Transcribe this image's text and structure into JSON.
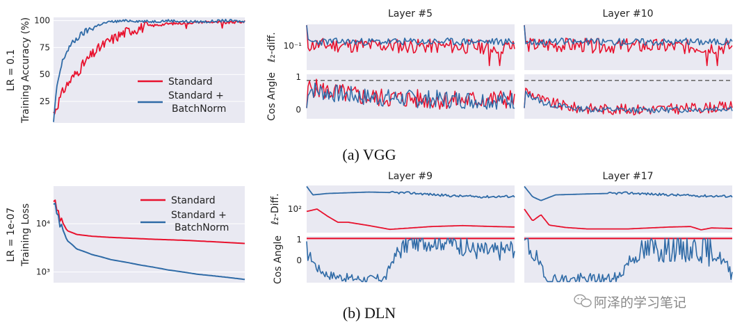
{
  "colors": {
    "standard": "#e8112d",
    "batchnorm": "#2e6aa6",
    "panel_bg": "#e9e9f2",
    "reference_line": "#555555"
  },
  "watermark": {
    "text": "阿泽的学习笔记"
  },
  "chart_data": [
    {
      "id": "vgg-accuracy",
      "type": "line",
      "ylabel": "Training Accuracy (%)",
      "row_label": "LR = 0.1",
      "yticks": [
        "25",
        "50",
        "75",
        "100"
      ],
      "ytick_values": [
        25,
        50,
        75,
        100
      ],
      "ylim": [
        5,
        103
      ],
      "legend": {
        "position": "bottom-right",
        "entries": [
          "Standard",
          "Standard +",
          "BatchNorm"
        ]
      },
      "series": [
        {
          "name": "Standard",
          "color": "#e8112d",
          "x": [
            0,
            0.03,
            0.06,
            0.1,
            0.15,
            0.2,
            0.25,
            0.3,
            0.35,
            0.4,
            0.5,
            0.6,
            0.7,
            0.8,
            0.9,
            1.0
          ],
          "y": [
            14,
            26,
            38,
            47,
            58,
            68,
            76,
            82,
            87,
            91,
            95,
            97,
            98,
            99,
            98,
            99
          ]
        },
        {
          "name": "Standard + BatchNorm",
          "color": "#2e6aa6",
          "x": [
            0,
            0.02,
            0.05,
            0.08,
            0.12,
            0.16,
            0.2,
            0.25,
            0.3,
            0.4,
            0.5,
            0.6,
            0.7,
            0.8,
            0.9,
            1.0
          ],
          "y": [
            6,
            42,
            64,
            75,
            83,
            89,
            93,
            97,
            99,
            100,
            99,
            100,
            99,
            99,
            100,
            99
          ]
        }
      ]
    },
    {
      "id": "dln-loss",
      "type": "line",
      "ylabel": "Training Loss",
      "row_label": "LR = 1e-07",
      "yscale": "log",
      "yticks": [
        "10³",
        "10⁴"
      ],
      "ytick_values": [
        1000,
        10000
      ],
      "ylim": [
        600,
        60000
      ],
      "legend": {
        "position": "top-right",
        "entries": [
          "Standard",
          "Standard +",
          "BatchNorm"
        ]
      },
      "series": [
        {
          "name": "Standard",
          "color": "#e8112d",
          "x": [
            0,
            0.03,
            0.07,
            0.12,
            0.2,
            0.3,
            0.5,
            0.7,
            0.85,
            1.0
          ],
          "y": [
            32000,
            13000,
            7200,
            6000,
            5500,
            5200,
            4800,
            4500,
            4200,
            3900
          ]
        },
        {
          "name": "Standard + BatchNorm",
          "color": "#2e6aa6",
          "x": [
            0,
            0.03,
            0.07,
            0.12,
            0.2,
            0.3,
            0.45,
            0.6,
            0.75,
            0.9,
            1.0
          ],
          "y": [
            28000,
            10000,
            4500,
            3000,
            2300,
            1800,
            1400,
            1100,
            900,
            780,
            700
          ]
        }
      ]
    },
    {
      "id": "vgg-layers",
      "type": "line",
      "panel_titles": [
        "Layer #5",
        "Layer #10"
      ],
      "diff_ylabel": "ℓ₂-diff.",
      "diff_ytick": "10⁻¹",
      "cos_ylabel": "Cos Angle",
      "cos_yticks": [
        "0",
        "1"
      ],
      "cos_ytick_values": [
        0,
        1
      ],
      "reference_line": 1,
      "diff_series": {
        "Standard": {
          "level": 0.55,
          "noise": 0.16,
          "trend": -0.05,
          "seed": 11
        },
        "Standard + BatchNorm": {
          "level": 0.62,
          "noise": 0.08,
          "trend": 0.0,
          "seed": 23
        }
      },
      "cos_series": {
        "layer_5": {
          "Standard": {
            "x": [
              0,
              0.1,
              0.3,
              0.5,
              0.7,
              1.0
            ],
            "y": [
              0.8,
              0.65,
              0.45,
              0.4,
              0.35,
              0.4
            ],
            "noise": 0.32,
            "seed": 5
          },
          "Standard + BatchNorm": {
            "x": [
              0,
              0.1,
              0.3,
              0.5,
              0.7,
              1.0
            ],
            "y": [
              0.75,
              0.6,
              0.45,
              0.4,
              0.38,
              0.35
            ],
            "noise": 0.3,
            "seed": 7
          }
        },
        "layer_10": {
          "Standard": {
            "x": [
              0,
              0.1,
              0.25,
              0.5,
              0.75,
              1.0
            ],
            "y": [
              0.7,
              0.3,
              0.1,
              0.05,
              0.08,
              0.15
            ],
            "noise": 0.18,
            "seed": 9
          },
          "Standard + BatchNorm": {
            "x": [
              0,
              0.1,
              0.25,
              0.5,
              0.75,
              1.0
            ],
            "y": [
              0.6,
              0.25,
              0.08,
              0.03,
              0.05,
              0.1
            ],
            "noise": 0.1,
            "seed": 13
          }
        }
      },
      "caption": "(a) VGG"
    },
    {
      "id": "dln-layers",
      "type": "line",
      "panel_titles": [
        "Layer #9",
        "Layer #17"
      ],
      "diff_ylabel": "ℓ₂-Diff.",
      "diff_ytick": "10²",
      "cos_ylabel": "Cos Angle",
      "cos_yticks": [
        "0",
        "1"
      ],
      "cos_ytick_values": [
        0,
        1
      ],
      "reference_line": 1,
      "diff_series": {
        "layer_9": {
          "Standard": {
            "x": [
              0,
              0.05,
              0.1,
              0.15,
              0.2,
              0.3,
              0.4,
              0.5,
              0.6,
              0.75,
              0.9,
              1.0
            ],
            "y": [
              0.45,
              0.5,
              0.35,
              0.22,
              0.22,
              0.15,
              0.07,
              0.1,
              0.13,
              0.15,
              0.13,
              0.12
            ]
          },
          "Standard + BatchNorm": {
            "x": [
              0,
              0.03,
              0.1,
              0.3,
              0.5,
              0.7,
              0.85,
              1.0
            ],
            "y": [
              0.98,
              0.8,
              0.83,
              0.86,
              0.84,
              0.78,
              0.76,
              0.77
            ]
          }
        },
        "layer_17": {
          "Standard": {
            "x": [
              0,
              0.04,
              0.08,
              0.12,
              0.2,
              0.3,
              0.5,
              0.7,
              0.8,
              0.85,
              0.9,
              1.0
            ],
            "y": [
              0.5,
              0.25,
              0.38,
              0.16,
              0.11,
              0.08,
              0.08,
              0.12,
              0.13,
              0.06,
              0.1,
              0.09
            ]
          },
          "Standard + BatchNorm": {
            "x": [
              0,
              0.04,
              0.08,
              0.15,
              0.3,
              0.5,
              0.7,
              0.85,
              1.0
            ],
            "y": [
              0.98,
              0.76,
              0.68,
              0.8,
              0.82,
              0.84,
              0.8,
              0.78,
              0.77
            ]
          }
        }
      },
      "cos_series": {
        "layer_9": {
          "Standard": {
            "x": [
              0,
              1
            ],
            "y": [
              1,
              1
            ]
          },
          "Standard + BatchNorm": {
            "x": [
              0,
              0.05,
              0.1,
              0.2,
              0.3,
              0.38,
              0.41,
              0.45,
              0.5,
              0.65,
              0.7,
              0.8,
              0.9,
              1.0
            ],
            "y": [
              0.5,
              -0.3,
              -0.6,
              -0.75,
              -0.8,
              -0.75,
              0.0,
              0.5,
              0.85,
              0.9,
              0.85,
              0.5,
              0.4,
              0.6
            ],
            "noise": 0.2,
            "seed": 17
          }
        },
        "layer_17": {
          "Standard": {
            "x": [
              0,
              1
            ],
            "y": [
              1,
              1
            ]
          },
          "Standard + BatchNorm": {
            "x": [
              0,
              0.05,
              0.1,
              0.15,
              0.3,
              0.45,
              0.5,
              0.6,
              0.7,
              0.85,
              0.95,
              1.0
            ],
            "y": [
              0.8,
              0.4,
              -0.8,
              -0.82,
              -0.82,
              -0.8,
              0.0,
              0.5,
              0.6,
              0.55,
              0.1,
              -0.6
            ],
            "noise": 0.3,
            "seed": 19
          }
        }
      },
      "caption": "(b) DLN"
    }
  ]
}
